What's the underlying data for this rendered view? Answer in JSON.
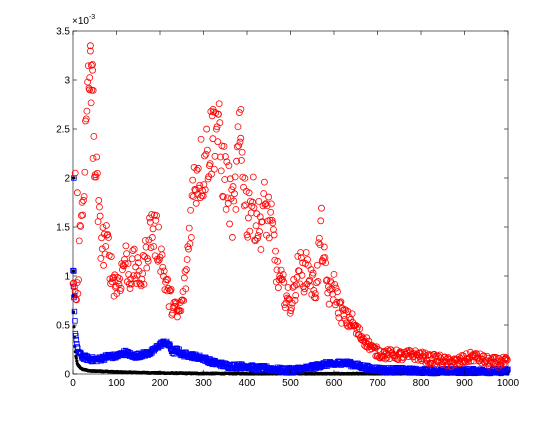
{
  "chart_data": {
    "type": "scatter",
    "title": "",
    "xlabel": "",
    "ylabel": "",
    "xlim": [
      0,
      1000
    ],
    "ylim": [
      0,
      3.5
    ],
    "y_scale_label": "×10",
    "y_scale_exponent": "-3",
    "x_ticks": [
      "0",
      "100",
      "200",
      "300",
      "400",
      "500",
      "600",
      "700",
      "800",
      "900",
      "1000"
    ],
    "y_ticks": [
      "0",
      "0.5",
      "1",
      "1.5",
      "2",
      "2.5",
      "3",
      "3.5"
    ],
    "grid": false,
    "legend": "none",
    "series": [
      {
        "color": "#ff0000",
        "marker": "circle",
        "anchors": [
          [
            0,
            1.0
          ],
          [
            8,
            0.7
          ],
          [
            15,
            1.3
          ],
          [
            22,
            1.8
          ],
          [
            30,
            2.4
          ],
          [
            40,
            3.2
          ],
          [
            50,
            2.3
          ],
          [
            60,
            1.5
          ],
          [
            70,
            1.3
          ],
          [
            80,
            1.3
          ],
          [
            90,
            1.0
          ],
          [
            100,
            0.9
          ],
          [
            110,
            1.0
          ],
          [
            120,
            1.2
          ],
          [
            130,
            1.0
          ],
          [
            140,
            1.1
          ],
          [
            150,
            1.0
          ],
          [
            160,
            1.0
          ],
          [
            170,
            1.3
          ],
          [
            180,
            1.5
          ],
          [
            190,
            1.4
          ],
          [
            200,
            1.3
          ],
          [
            210,
            1.0
          ],
          [
            220,
            0.8
          ],
          [
            230,
            0.7
          ],
          [
            240,
            0.6
          ],
          [
            250,
            0.7
          ],
          [
            260,
            1.0
          ],
          [
            270,
            1.6
          ],
          [
            280,
            2.0
          ],
          [
            290,
            2.1
          ],
          [
            300,
            2.1
          ],
          [
            310,
            2.3
          ],
          [
            320,
            2.4
          ],
          [
            330,
            2.6
          ],
          [
            340,
            2.2
          ],
          [
            350,
            2.0
          ],
          [
            360,
            1.8
          ],
          [
            370,
            1.6
          ],
          [
            380,
            2.3
          ],
          [
            390,
            2.2
          ],
          [
            400,
            1.6
          ],
          [
            410,
            1.8
          ],
          [
            420,
            1.6
          ],
          [
            430,
            1.5
          ],
          [
            440,
            1.7
          ],
          [
            450,
            1.6
          ],
          [
            460,
            1.4
          ],
          [
            470,
            1.0
          ],
          [
            480,
            0.9
          ],
          [
            490,
            0.8
          ],
          [
            500,
            0.7
          ],
          [
            510,
            0.9
          ],
          [
            520,
            1.1
          ],
          [
            530,
            1.0
          ],
          [
            540,
            1.1
          ],
          [
            550,
            0.9
          ],
          [
            560,
            0.9
          ],
          [
            570,
            1.5
          ],
          [
            580,
            1.0
          ],
          [
            590,
            0.8
          ],
          [
            600,
            0.9
          ],
          [
            610,
            0.7
          ],
          [
            620,
            0.6
          ],
          [
            630,
            0.55
          ],
          [
            640,
            0.55
          ],
          [
            650,
            0.45
          ],
          [
            660,
            0.4
          ],
          [
            670,
            0.35
          ],
          [
            680,
            0.3
          ],
          [
            690,
            0.25
          ],
          [
            700,
            0.22
          ],
          [
            720,
            0.2
          ],
          [
            740,
            0.2
          ],
          [
            760,
            0.18
          ],
          [
            780,
            0.2
          ],
          [
            800,
            0.18
          ],
          [
            820,
            0.15
          ],
          [
            840,
            0.15
          ],
          [
            860,
            0.12
          ],
          [
            880,
            0.12
          ],
          [
            900,
            0.15
          ],
          [
            920,
            0.18
          ],
          [
            940,
            0.15
          ],
          [
            960,
            0.12
          ],
          [
            980,
            0.12
          ],
          [
            1000,
            0.12
          ]
        ],
        "highlights": [
          [
            40,
            3.35
          ],
          [
            42,
            3.15
          ],
          [
            45,
            3.1
          ],
          [
            38,
            2.9
          ],
          [
            322,
            2.7
          ],
          [
            334,
            2.65
          ],
          [
            386,
            2.7
          ],
          [
            5,
            2.05
          ],
          [
            10,
            1.85
          ],
          [
            46,
            2.2
          ]
        ]
      },
      {
        "color": "#0000ff",
        "marker": "square",
        "anchors": [
          [
            0,
            1.05
          ],
          [
            2,
            0.8
          ],
          [
            5,
            0.45
          ],
          [
            10,
            0.25
          ],
          [
            20,
            0.18
          ],
          [
            40,
            0.15
          ],
          [
            60,
            0.15
          ],
          [
            80,
            0.18
          ],
          [
            100,
            0.18
          ],
          [
            120,
            0.22
          ],
          [
            140,
            0.18
          ],
          [
            160,
            0.2
          ],
          [
            180,
            0.22
          ],
          [
            200,
            0.3
          ],
          [
            210,
            0.32
          ],
          [
            220,
            0.3
          ],
          [
            230,
            0.22
          ],
          [
            240,
            0.25
          ],
          [
            250,
            0.2
          ],
          [
            260,
            0.2
          ],
          [
            280,
            0.18
          ],
          [
            300,
            0.16
          ],
          [
            320,
            0.12
          ],
          [
            340,
            0.1
          ],
          [
            360,
            0.08
          ],
          [
            380,
            0.08
          ],
          [
            400,
            0.08
          ],
          [
            420,
            0.06
          ],
          [
            440,
            0.06
          ],
          [
            460,
            0.05
          ],
          [
            480,
            0.04
          ],
          [
            500,
            0.04
          ],
          [
            520,
            0.05
          ],
          [
            540,
            0.06
          ],
          [
            560,
            0.08
          ],
          [
            580,
            0.1
          ],
          [
            600,
            0.1
          ],
          [
            620,
            0.12
          ],
          [
            640,
            0.1
          ],
          [
            660,
            0.08
          ],
          [
            680,
            0.06
          ],
          [
            700,
            0.05
          ],
          [
            720,
            0.04
          ],
          [
            760,
            0.04
          ],
          [
            800,
            0.03
          ],
          [
            850,
            0.03
          ],
          [
            900,
            0.03
          ],
          [
            950,
            0.03
          ],
          [
            1000,
            0.03
          ]
        ],
        "highlights": [
          [
            2,
            2.0
          ],
          [
            2,
            1.05
          ],
          [
            4,
            0.8
          ]
        ]
      },
      {
        "color": "#000000",
        "marker": "point",
        "anchors": [
          [
            0,
            0.8
          ],
          [
            2,
            0.5
          ],
          [
            4,
            0.3
          ],
          [
            6,
            0.2
          ],
          [
            10,
            0.1
          ],
          [
            20,
            0.05
          ],
          [
            40,
            0.03
          ],
          [
            60,
            0.03
          ],
          [
            100,
            0.02
          ],
          [
            200,
            0.01
          ],
          [
            300,
            0.005
          ],
          [
            500,
            0.003
          ],
          [
            700,
            0.002
          ],
          [
            1000,
            0.001
          ]
        ],
        "highlights": [
          [
            1,
            2.0
          ],
          [
            1,
            1.05
          ],
          [
            3,
            0.8
          ]
        ]
      }
    ]
  }
}
